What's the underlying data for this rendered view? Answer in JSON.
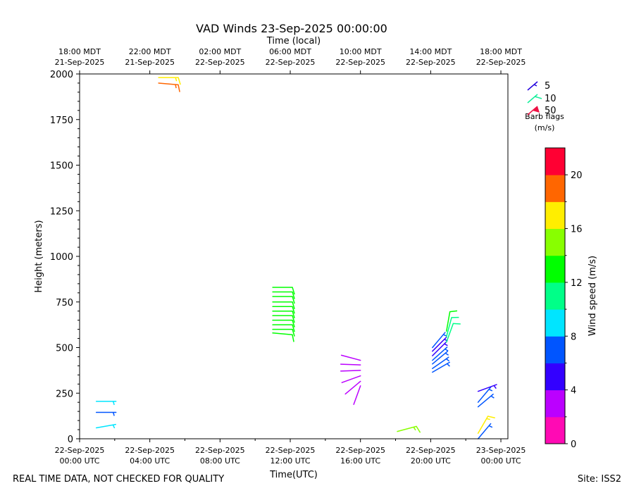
{
  "chart_data": {
    "type": "wind_barb_profile",
    "title": "VAD Winds 23-Sep-2025 00:00:00",
    "xlabel": "Time(UTC)",
    "xlabel_top": "Time (local)",
    "ylabel": "Height (meters)",
    "xlim_hours_from_start": [
      0,
      24.4
    ],
    "ylim": [
      0,
      2000
    ],
    "yticks": [
      0,
      250,
      500,
      750,
      1000,
      1250,
      1500,
      1750,
      2000
    ],
    "xticks_bottom": [
      {
        "h": 0,
        "l1": "22-Sep-2025",
        "l2": "00:00 UTC"
      },
      {
        "h": 4,
        "l1": "22-Sep-2025",
        "l2": "04:00 UTC"
      },
      {
        "h": 8,
        "l1": "22-Sep-2025",
        "l2": "08:00 UTC"
      },
      {
        "h": 12,
        "l1": "22-Sep-2025",
        "l2": "12:00 UTC"
      },
      {
        "h": 16,
        "l1": "22-Sep-2025",
        "l2": "16:00 UTC"
      },
      {
        "h": 20,
        "l1": "22-Sep-2025",
        "l2": "20:00 UTC"
      },
      {
        "h": 24,
        "l1": "23-Sep-2025",
        "l2": "00:00 UTC"
      }
    ],
    "xticks_top": [
      {
        "h": 0,
        "l1": "18:00 MDT",
        "l2": "21-Sep-2025"
      },
      {
        "h": 4,
        "l1": "22:00 MDT",
        "l2": "21-Sep-2025"
      },
      {
        "h": 8,
        "l1": "02:00 MDT",
        "l2": "22-Sep-2025"
      },
      {
        "h": 12,
        "l1": "06:00 MDT",
        "l2": "22-Sep-2025"
      },
      {
        "h": 16,
        "l1": "10:00 MDT",
        "l2": "22-Sep-2025"
      },
      {
        "h": 20,
        "l1": "14:00 MDT",
        "l2": "22-Sep-2025"
      },
      {
        "h": 24,
        "l1": "18:00 MDT",
        "l2": "22-Sep-2025"
      }
    ],
    "legend": {
      "items": [
        {
          "label": "5",
          "speed": 5,
          "color": "#2200dd"
        },
        {
          "label": "10",
          "speed": 10,
          "color": "#11ee99"
        },
        {
          "label": "50",
          "speed": 50,
          "color": "#ee1144"
        }
      ],
      "caption_line1": "Barb flags",
      "caption_line2": "(m/s)",
      "placement": "upper-right"
    },
    "colorbar": {
      "label": "Wind speed (m/s)",
      "vmin": 0,
      "vmax": 22,
      "ticks": [
        0,
        4,
        8,
        12,
        16,
        20
      ],
      "colors": [
        "#ff0ab4",
        "#bb00ff",
        "#3300ff",
        "#0055ff",
        "#00e5ff",
        "#00ff88",
        "#00ff00",
        "#88ff00",
        "#ffee00",
        "#ff6600",
        "#ff0033"
      ]
    },
    "barbs": [
      {
        "t": 0.95,
        "h": 60,
        "speed": 9,
        "dir": 80
      },
      {
        "t": 0.95,
        "h": 145,
        "speed": 7,
        "dir": 90
      },
      {
        "t": 0.95,
        "h": 205,
        "speed": 9,
        "dir": 90
      },
      {
        "t": 4.5,
        "h": 1950,
        "speed": 19,
        "dir": 95
      },
      {
        "t": 4.5,
        "h": 1980,
        "speed": 17,
        "dir": 90
      },
      {
        "t": 11.0,
        "h": 580,
        "speed": 13,
        "dir": 95
      },
      {
        "t": 11.0,
        "h": 600,
        "speed": 13,
        "dir": 90
      },
      {
        "t": 11.0,
        "h": 625,
        "speed": 13,
        "dir": 90
      },
      {
        "t": 11.0,
        "h": 650,
        "speed": 13,
        "dir": 90
      },
      {
        "t": 11.0,
        "h": 675,
        "speed": 13,
        "dir": 90
      },
      {
        "t": 11.0,
        "h": 700,
        "speed": 13,
        "dir": 90
      },
      {
        "t": 11.0,
        "h": 725,
        "speed": 13,
        "dir": 90
      },
      {
        "t": 11.0,
        "h": 750,
        "speed": 13,
        "dir": 90
      },
      {
        "t": 11.0,
        "h": 780,
        "speed": 13,
        "dir": 90
      },
      {
        "t": 11.0,
        "h": 805,
        "speed": 13,
        "dir": 90
      },
      {
        "t": 11.0,
        "h": 830,
        "speed": 13,
        "dir": 90
      },
      {
        "t": 16.0,
        "h": 290,
        "speed": 3,
        "dir": 200
      },
      {
        "t": 16.0,
        "h": 315,
        "speed": 3,
        "dir": 230
      },
      {
        "t": 16.0,
        "h": 345,
        "speed": 3,
        "dir": 250
      },
      {
        "t": 16.0,
        "h": 375,
        "speed": 3,
        "dir": 268
      },
      {
        "t": 16.0,
        "h": 405,
        "speed": 3,
        "dir": 272
      },
      {
        "t": 16.0,
        "h": 430,
        "speed": 3,
        "dir": 285
      },
      {
        "t": 18.1,
        "h": 40,
        "speed": 15,
        "dir": 75
      },
      {
        "t": 20.1,
        "h": 365,
        "speed": 7,
        "dir": 60
      },
      {
        "t": 20.1,
        "h": 385,
        "speed": 7,
        "dir": 55
      },
      {
        "t": 20.1,
        "h": 410,
        "speed": 6,
        "dir": 50
      },
      {
        "t": 20.1,
        "h": 430,
        "speed": 6,
        "dir": 48
      },
      {
        "t": 20.1,
        "h": 455,
        "speed": 5,
        "dir": 45
      },
      {
        "t": 20.1,
        "h": 480,
        "speed": 5,
        "dir": 45
      },
      {
        "t": 20.1,
        "h": 500,
        "speed": 6,
        "dir": 40
      },
      {
        "t": 20.9,
        "h": 530,
        "speed": 10,
        "dir": 20
      },
      {
        "t": 20.9,
        "h": 560,
        "speed": 11,
        "dir": 15
      },
      {
        "t": 20.9,
        "h": 590,
        "speed": 12,
        "dir": 10
      },
      {
        "t": 22.7,
        "h": 0,
        "speed": 7,
        "dir": 40
      },
      {
        "t": 22.7,
        "h": 30,
        "speed": 17,
        "dir": 30
      },
      {
        "t": 22.7,
        "h": 175,
        "speed": 6,
        "dir": 50
      },
      {
        "t": 22.7,
        "h": 200,
        "speed": 6,
        "dir": 40
      },
      {
        "t": 22.7,
        "h": 260,
        "speed": 5,
        "dir": 70
      }
    ]
  },
  "footer": {
    "left": "REAL TIME DATA, NOT CHECKED FOR QUALITY",
    "right": "Site: ISS2"
  }
}
